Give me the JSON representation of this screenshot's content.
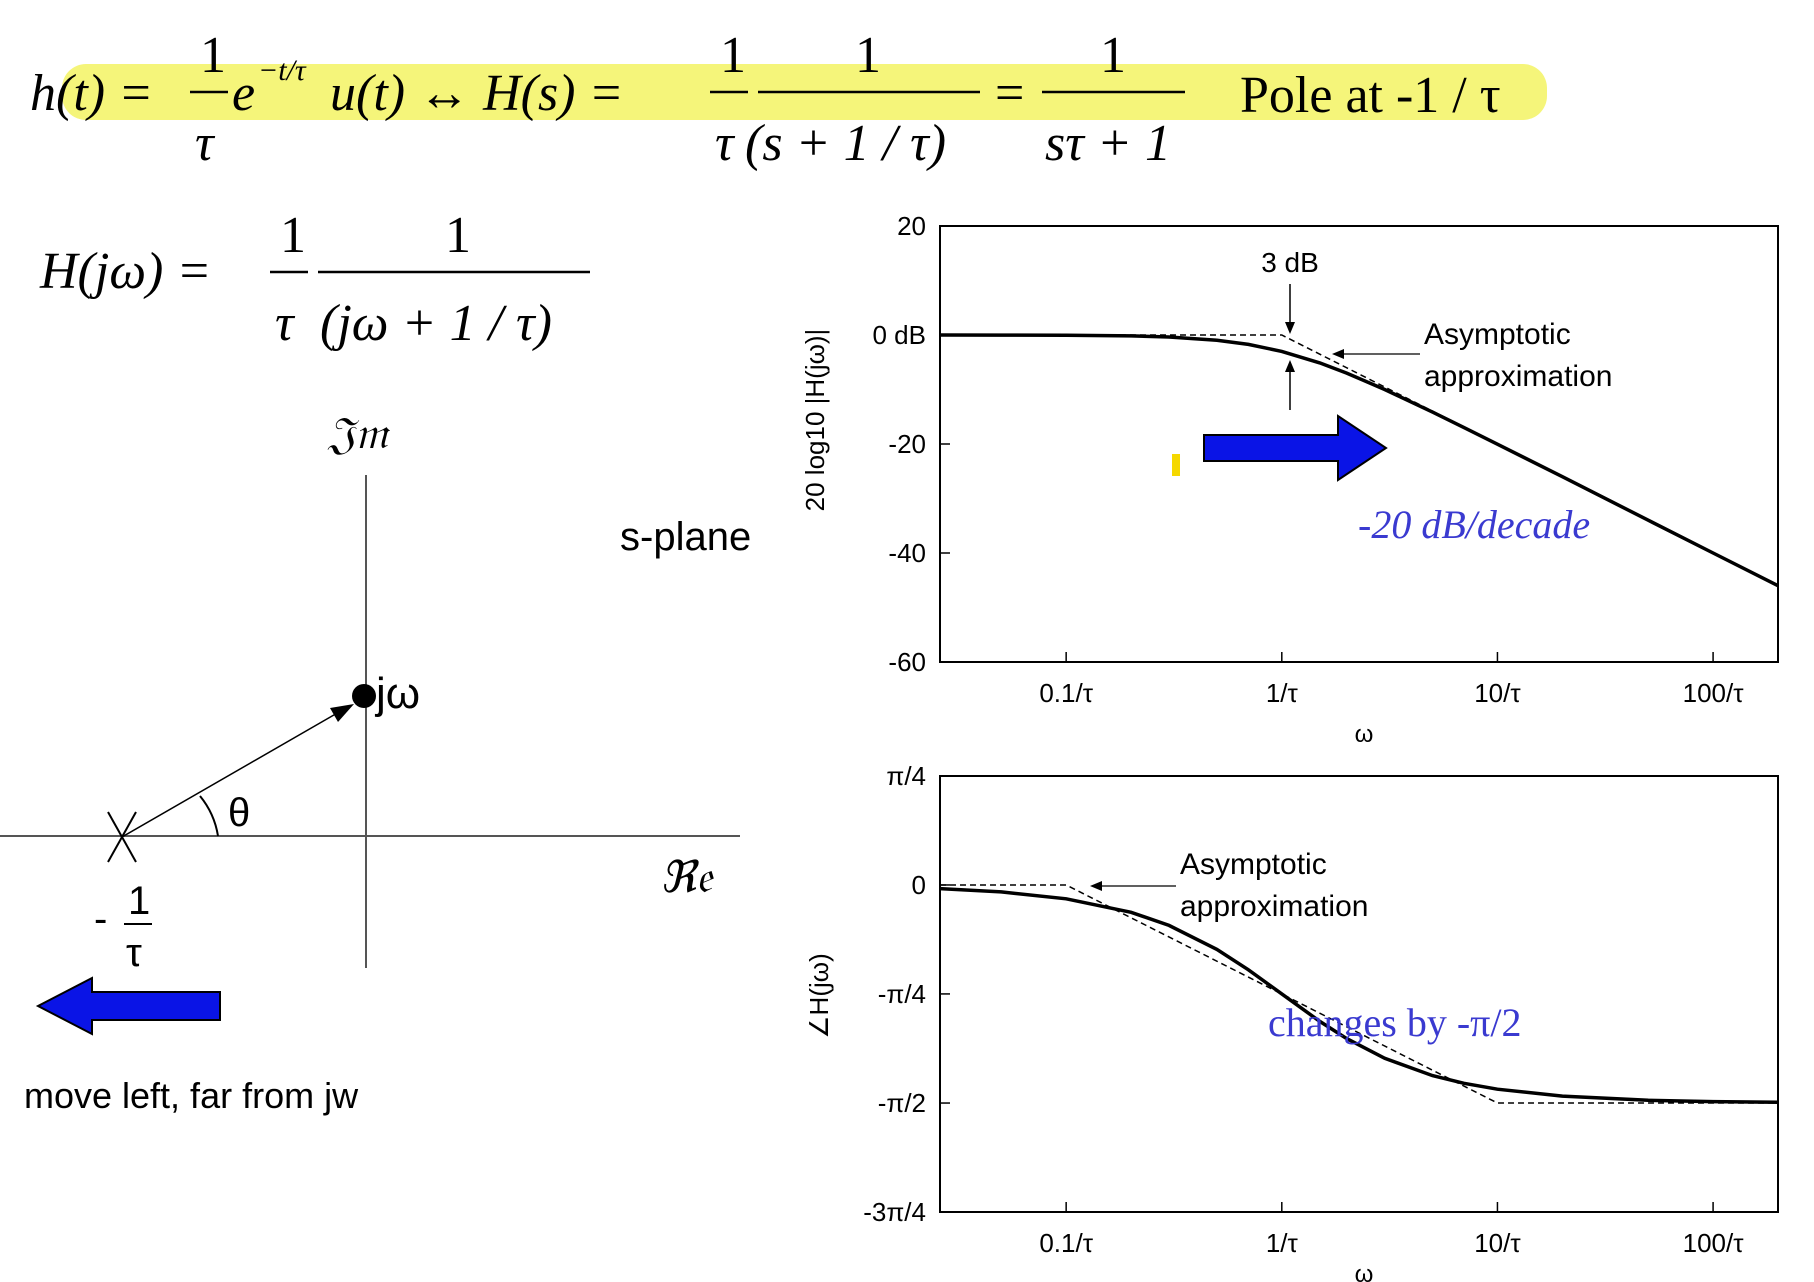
{
  "equations": {
    "h_lhs": "h(t) =",
    "frac_one": "1",
    "tau": "τ",
    "exp_base": "e",
    "exp_sup": "−t/τ",
    "u_term": "u(t) ↔ H(s) =",
    "s_denominator": "(s + 1 / τ)",
    "equals": "=",
    "s_tau_plus_one": "sτ + 1",
    "pole_text": "Pole at  -1 / τ",
    "hjw_lhs": "H(jω) =",
    "jw_denominator": "(jω + 1 / τ)"
  },
  "s_plane": {
    "label": "s-plane",
    "im_axis": "𝔍𝔪",
    "re_axis": "ℜ𝔢",
    "jw_label": "jω",
    "theta": "θ",
    "pole_minus": "-",
    "pole_num": "1",
    "pole_den": "τ",
    "caption": "move left, far from jw"
  },
  "colors": {
    "highlight": "#f5f57a",
    "arrow_blue": "#0a14e6",
    "annotation_blue": "#3a3ad0",
    "yellow_mark": "#f5d800"
  },
  "chart_data": [
    {
      "type": "line",
      "ylabel": "20 log10 |H(jω)|",
      "xlabel": "ω",
      "x_scale": "log",
      "xlim_omega_tau": [
        0.026,
        200
      ],
      "ylim": [
        -60,
        20
      ],
      "xtick_labels": [
        "0.1/τ",
        "1/τ",
        "10/τ",
        "100/τ"
      ],
      "xtick_values": [
        0.1,
        1,
        10,
        100
      ],
      "ytick_labels": [
        "20",
        "0 dB",
        "-20",
        "-40",
        "-60"
      ],
      "ytick_values": [
        20,
        0,
        -20,
        -40,
        -60
      ],
      "series": [
        {
          "x": [
            0.026,
            0.05,
            0.1,
            0.2,
            0.3,
            0.5,
            0.7,
            1,
            1.5,
            2,
            3,
            5,
            7,
            10,
            20,
            50,
            100,
            200
          ],
          "y": [
            0,
            -0.01,
            -0.04,
            -0.17,
            -0.37,
            -0.97,
            -1.73,
            -3.01,
            -5.12,
            -6.99,
            -10.0,
            -14.15,
            -17.0,
            -20.04,
            -26.0,
            -33.98,
            -40.0,
            -46.0
          ]
        },
        {
          "x": [
            0.026,
            1,
            200
          ],
          "y": [
            0,
            0,
            -46.0
          ]
        }
      ],
      "annotations": {
        "three_db": "3 dB",
        "asymptotic_1": "Asymptotic",
        "asymptotic_2": "approximation",
        "slope": "-20 dB/decade"
      }
    },
    {
      "type": "line",
      "ylabel": "∠H(jω)",
      "xlabel": "ω",
      "x_scale": "log",
      "xlim_omega_tau": [
        0.026,
        200
      ],
      "ylim_rad": [
        -2.356,
        0.785
      ],
      "xtick_labels": [
        "0.1/τ",
        "1/τ",
        "10/τ",
        "100/τ"
      ],
      "xtick_values": [
        0.1,
        1,
        10,
        100
      ],
      "ytick_labels": [
        "π/4",
        "0",
        "-π/4",
        "-π/2",
        "-3π/4"
      ],
      "ytick_values": [
        0.785,
        0,
        -0.785,
        -1.571,
        -2.356
      ],
      "series": [
        {
          "x": [
            0.026,
            0.05,
            0.1,
            0.2,
            0.3,
            0.5,
            0.7,
            1,
            1.5,
            2,
            3,
            5,
            7,
            10,
            20,
            50,
            100,
            200
          ],
          "y": [
            -0.026,
            -0.05,
            -0.1,
            -0.197,
            -0.291,
            -0.464,
            -0.611,
            -0.785,
            -0.983,
            -1.107,
            -1.249,
            -1.373,
            -1.429,
            -1.471,
            -1.521,
            -1.551,
            -1.561,
            -1.566
          ]
        },
        {
          "x": [
            0.026,
            0.1,
            10,
            200
          ],
          "y": [
            0,
            0,
            -1.571,
            -1.571
          ]
        }
      ],
      "annotations": {
        "asymptotic_1": "Asymptotic",
        "asymptotic_2": "approximation",
        "phase_change": "changes by -π/2"
      }
    }
  ]
}
